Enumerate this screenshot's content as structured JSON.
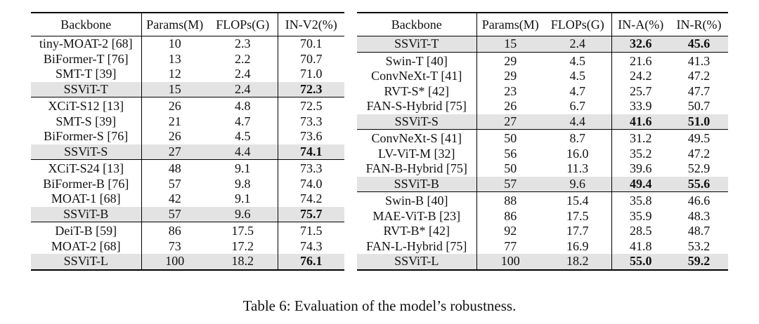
{
  "caption": "Table 6: Evaluation of the model’s robustness.",
  "left_table": {
    "headers": [
      "Backbone",
      "Params(M)",
      "FLOPs(G)",
      "IN-V2(%)"
    ],
    "groups": [
      {
        "rows": [
          {
            "cells": [
              "tiny-MOAT-2 [68]",
              "10",
              "2.3",
              "70.1"
            ]
          },
          {
            "cells": [
              "BiFormer-T [76]",
              "13",
              "2.2",
              "70.7"
            ]
          },
          {
            "cells": [
              "SMT-T [39]",
              "12",
              "2.4",
              "71.0"
            ]
          },
          {
            "cells": [
              "SSViT-T",
              "15",
              "2.4",
              "72.3"
            ],
            "highlight": true,
            "bold_cols": [
              3
            ]
          }
        ]
      },
      {
        "rows": [
          {
            "cells": [
              "XCiT-S12 [13]",
              "26",
              "4.8",
              "72.5"
            ]
          },
          {
            "cells": [
              "SMT-S [39]",
              "21",
              "4.7",
              "73.3"
            ]
          },
          {
            "cells": [
              "BiFormer-S [76]",
              "26",
              "4.5",
              "73.6"
            ]
          },
          {
            "cells": [
              "SSViT-S",
              "27",
              "4.4",
              "74.1"
            ],
            "highlight": true,
            "bold_cols": [
              3
            ]
          }
        ]
      },
      {
        "rows": [
          {
            "cells": [
              "XCiT-S24 [13]",
              "48",
              "9.1",
              "73.3"
            ]
          },
          {
            "cells": [
              "BiFormer-B [76]",
              "57",
              "9.8",
              "74.0"
            ]
          },
          {
            "cells": [
              "MOAT-1 [68]",
              "42",
              "9.1",
              "74.2"
            ]
          },
          {
            "cells": [
              "SSViT-B",
              "57",
              "9.6",
              "75.7"
            ],
            "highlight": true,
            "bold_cols": [
              3
            ]
          }
        ]
      },
      {
        "rows": [
          {
            "cells": [
              "DeiT-B [59]",
              "86",
              "17.5",
              "71.5"
            ]
          },
          {
            "cells": [
              "MOAT-2 [68]",
              "73",
              "17.2",
              "74.3"
            ]
          },
          {
            "cells": [
              "SSViT-L",
              "100",
              "18.2",
              "76.1"
            ],
            "highlight": true,
            "bold_cols": [
              3
            ]
          }
        ]
      }
    ]
  },
  "right_table": {
    "headers": [
      "Backbone",
      "Params(M)",
      "FLOPs(G)",
      "IN-A(%)",
      "IN-R(%)"
    ],
    "groups": [
      {
        "rows": [
          {
            "cells": [
              "SSViT-T",
              "15",
              "2.4",
              "32.6",
              "45.6"
            ],
            "highlight": true,
            "bold_cols": [
              3,
              4
            ]
          }
        ]
      },
      {
        "rows": [
          {
            "cells": [
              "Swin-T [40]",
              "29",
              "4.5",
              "21.6",
              "41.3"
            ]
          },
          {
            "cells": [
              "ConvNeXt-T [41]",
              "29",
              "4.5",
              "24.2",
              "47.2"
            ]
          },
          {
            "cells": [
              "RVT-S* [42]",
              "23",
              "4.7",
              "25.7",
              "47.7"
            ]
          },
          {
            "cells": [
              "FAN-S-Hybrid [75]",
              "26",
              "6.7",
              "33.9",
              "50.7"
            ]
          },
          {
            "cells": [
              "SSViT-S",
              "27",
              "4.4",
              "41.6",
              "51.0"
            ],
            "highlight": true,
            "bold_cols": [
              3,
              4
            ]
          }
        ]
      },
      {
        "rows": [
          {
            "cells": [
              "ConvNeXt-S [41]",
              "50",
              "8.7",
              "31.2",
              "49.5"
            ]
          },
          {
            "cells": [
              "LV-ViT-M [32]",
              "56",
              "16.0",
              "35.2",
              "47.2"
            ]
          },
          {
            "cells": [
              "FAN-B-Hybrid [75]",
              "50",
              "11.3",
              "39.6",
              "52.9"
            ]
          },
          {
            "cells": [
              "SSViT-B",
              "57",
              "9.6",
              "49.4",
              "55.6"
            ],
            "highlight": true,
            "bold_cols": [
              3,
              4
            ]
          }
        ]
      },
      {
        "rows": [
          {
            "cells": [
              "Swin-B [40]",
              "88",
              "15.4",
              "35.8",
              "46.6"
            ]
          },
          {
            "cells": [
              "MAE-ViT-B [23]",
              "86",
              "17.5",
              "35.9",
              "48.3"
            ]
          },
          {
            "cells": [
              "RVT-B* [42]",
              "92",
              "17.7",
              "28.5",
              "48.7"
            ]
          },
          {
            "cells": [
              "FAN-L-Hybrid [75]",
              "77",
              "16.9",
              "41.8",
              "53.2"
            ]
          },
          {
            "cells": [
              "SSViT-L",
              "100",
              "18.2",
              "55.0",
              "59.2"
            ],
            "highlight": true,
            "bold_cols": [
              3,
              4
            ]
          }
        ]
      }
    ]
  }
}
